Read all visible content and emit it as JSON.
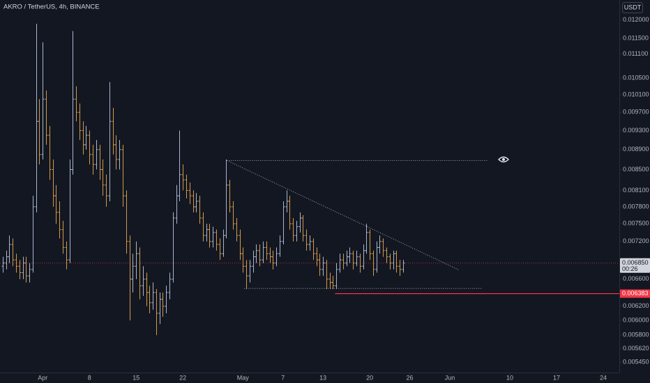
{
  "chart_data": {
    "type": "ohlc",
    "title": "AKRO / TetherUS, 4h, BINANCE",
    "currency": "USDT",
    "log_scale": true,
    "grid": false,
    "up_color": "#a9b6cc",
    "down_color": "#d29a47",
    "xlim": [
      -6.4,
      86.4
    ],
    "ylim": [
      0.01257,
      0.00532
    ],
    "xticks": [
      {
        "value": 0,
        "label": "Apr"
      },
      {
        "value": 7,
        "label": "8"
      },
      {
        "value": 14,
        "label": "15"
      },
      {
        "value": 21,
        "label": "22"
      },
      {
        "value": 30,
        "label": "May"
      },
      {
        "value": 36,
        "label": "7"
      },
      {
        "value": 42,
        "label": "13"
      },
      {
        "value": 49,
        "label": "20"
      },
      {
        "value": 55,
        "label": "26"
      },
      {
        "value": 61,
        "label": "Jun"
      },
      {
        "value": 70,
        "label": "10"
      },
      {
        "value": 77,
        "label": "17"
      },
      {
        "value": 84,
        "label": "24"
      }
    ],
    "yticks": [
      {
        "value": 0.012,
        "label": "0.012000"
      },
      {
        "value": 0.0115,
        "label": "0.011500"
      },
      {
        "value": 0.0111,
        "label": "0.011100"
      },
      {
        "value": 0.0105,
        "label": "0.010500"
      },
      {
        "value": 0.0101,
        "label": "0.010100"
      },
      {
        "value": 0.0097,
        "label": "0.009700"
      },
      {
        "value": 0.0093,
        "label": "0.009300"
      },
      {
        "value": 0.0089,
        "label": "0.008900"
      },
      {
        "value": 0.0085,
        "label": "0.008500"
      },
      {
        "value": 0.0081,
        "label": "0.008100"
      },
      {
        "value": 0.0078,
        "label": "0.007800"
      },
      {
        "value": 0.0075,
        "label": "0.007500"
      },
      {
        "value": 0.0072,
        "label": "0.007200"
      },
      {
        "value": 0.0066,
        "label": "0.006600"
      },
      {
        "value": 0.0062,
        "label": "0.006200"
      },
      {
        "value": 0.006,
        "label": "0.006000"
      },
      {
        "value": 0.0058,
        "label": "0.005800"
      },
      {
        "value": 0.00562,
        "label": "0.005620"
      },
      {
        "value": 0.00545,
        "label": "0.005450"
      }
    ],
    "x": [
      -6,
      -5.5,
      -5,
      -4.5,
      -4,
      -3.5,
      -3,
      -2.5,
      -2,
      -1.5,
      -1,
      -0.5,
      0,
      0.5,
      1,
      1.5,
      2,
      2.5,
      3,
      3.5,
      4,
      4.5,
      5,
      5.5,
      6,
      6.5,
      7,
      7.5,
      8,
      8.5,
      9,
      9.5,
      10,
      10.5,
      11,
      11.5,
      12,
      12.5,
      13,
      13.5,
      14,
      14.5,
      15,
      15.5,
      16,
      16.5,
      17,
      17.5,
      18,
      18.5,
      19,
      19.5,
      20,
      20.5,
      21,
      21.5,
      22,
      22.5,
      23,
      23.5,
      24,
      24.5,
      25,
      25.5,
      26,
      26.5,
      27,
      27.5,
      28,
      28.5,
      29,
      29.5,
      30,
      30.5,
      31,
      31.5,
      32,
      32.5,
      33,
      33.5,
      34,
      34.5,
      35,
      35.5,
      36,
      36.5,
      37,
      37.5,
      38,
      38.5,
      39,
      39.5,
      40,
      40.5,
      41,
      41.5,
      42,
      42.5,
      43,
      43.5,
      44,
      44.5,
      45,
      45.5,
      46,
      46.5,
      47,
      47.5,
      48,
      48.5,
      49,
      49.5,
      50,
      50.5,
      51,
      51.5,
      52,
      52.5,
      53,
      53.5,
      54
    ],
    "open": [
      0.0068,
      0.00685,
      0.00695,
      0.00715,
      0.0069,
      0.0068,
      0.0067,
      0.00685,
      0.00665,
      0.00675,
      0.0078,
      0.0095,
      0.0088,
      0.01,
      0.0092,
      0.0085,
      0.008,
      0.0077,
      0.0074,
      0.0071,
      0.0069,
      0.0085,
      0.01,
      0.0097,
      0.0093,
      0.009,
      0.0092,
      0.0088,
      0.0086,
      0.0089,
      0.0085,
      0.0082,
      0.008,
      0.0095,
      0.009,
      0.0087,
      0.0089,
      0.008,
      0.0072,
      0.0066,
      0.0068,
      0.007,
      0.0065,
      0.0066,
      0.0064,
      0.00625,
      0.0064,
      0.0061,
      0.0063,
      0.0062,
      0.0064,
      0.0066,
      0.0076,
      0.008,
      0.0084,
      0.0083,
      0.0081,
      0.008,
      0.0078,
      0.0079,
      0.0076,
      0.0073,
      0.0074,
      0.0072,
      0.00735,
      0.00715,
      0.007,
      0.0073,
      0.0082,
      0.0078,
      0.0075,
      0.0073,
      0.007,
      0.0068,
      0.00665,
      0.0068,
      0.00695,
      0.00705,
      0.0069,
      0.0071,
      0.007,
      0.00695,
      0.00685,
      0.007,
      0.0072,
      0.0078,
      0.0079,
      0.0075,
      0.0073,
      0.00745,
      0.0076,
      0.0073,
      0.00715,
      0.0072,
      0.007,
      0.0069,
      0.00675,
      0.00685,
      0.0066,
      0.00655,
      0.0065,
      0.00675,
      0.0069,
      0.00685,
      0.00695,
      0.007,
      0.00685,
      0.00695,
      0.0068,
      0.00705,
      0.00735,
      0.007,
      0.00675,
      0.0071,
      0.0072,
      0.00705,
      0.00695,
      0.00685,
      0.007,
      0.0068,
      0.00675
    ],
    "high": [
      0.00695,
      0.00705,
      0.0073,
      0.00725,
      0.007,
      0.0069,
      0.00695,
      0.00695,
      0.00685,
      0.008,
      0.0119,
      0.01,
      0.0114,
      0.0102,
      0.0094,
      0.0087,
      0.0082,
      0.0079,
      0.00755,
      0.0072,
      0.0087,
      0.0117,
      0.0103,
      0.0099,
      0.0095,
      0.0094,
      0.0093,
      0.009,
      0.0091,
      0.009,
      0.0087,
      0.0084,
      0.0104,
      0.0098,
      0.0092,
      0.0091,
      0.009,
      0.0081,
      0.0073,
      0.007,
      0.0072,
      0.0071,
      0.0068,
      0.0067,
      0.0065,
      0.00655,
      0.00645,
      0.0064,
      0.0064,
      0.0065,
      0.0067,
      0.0077,
      0.0082,
      0.0093,
      0.0086,
      0.0084,
      0.00825,
      0.0081,
      0.00805,
      0.008,
      0.0077,
      0.0075,
      0.0075,
      0.00745,
      0.0074,
      0.00725,
      0.0074,
      0.0087,
      0.0083,
      0.0079,
      0.0076,
      0.0074,
      0.0071,
      0.0069,
      0.0069,
      0.00705,
      0.00715,
      0.00715,
      0.0072,
      0.0072,
      0.0071,
      0.00705,
      0.0071,
      0.0073,
      0.0079,
      0.0081,
      0.008,
      0.0076,
      0.00755,
      0.0077,
      0.00765,
      0.0074,
      0.0073,
      0.00725,
      0.0071,
      0.007,
      0.00695,
      0.0069,
      0.0067,
      0.00665,
      0.00685,
      0.007,
      0.007,
      0.00705,
      0.0071,
      0.00705,
      0.00705,
      0.007,
      0.00715,
      0.0075,
      0.0074,
      0.00705,
      0.0072,
      0.0073,
      0.00725,
      0.0071,
      0.007,
      0.00705,
      0.00705,
      0.0069,
      0.0069
    ],
    "low": [
      0.0067,
      0.00675,
      0.00685,
      0.0068,
      0.0067,
      0.0066,
      0.0066,
      0.00655,
      0.00655,
      0.0067,
      0.0077,
      0.0086,
      0.0087,
      0.009,
      0.0083,
      0.0078,
      0.0075,
      0.00725,
      0.007,
      0.00675,
      0.00685,
      0.0084,
      0.0095,
      0.0091,
      0.0088,
      0.0089,
      0.0086,
      0.0084,
      0.0085,
      0.0083,
      0.008,
      0.0078,
      0.0079,
      0.0088,
      0.0085,
      0.0085,
      0.0078,
      0.007,
      0.006,
      0.0064,
      0.0066,
      0.0063,
      0.00635,
      0.0062,
      0.0061,
      0.00615,
      0.0058,
      0.00595,
      0.00605,
      0.0061,
      0.0063,
      0.00655,
      0.0075,
      0.0079,
      0.0081,
      0.00795,
      0.00785,
      0.0077,
      0.0077,
      0.0075,
      0.0072,
      0.0072,
      0.0071,
      0.0071,
      0.00705,
      0.0069,
      0.00695,
      0.00725,
      0.0077,
      0.0074,
      0.0072,
      0.0069,
      0.0067,
      0.00645,
      0.00655,
      0.0067,
      0.00685,
      0.0068,
      0.00685,
      0.0069,
      0.00685,
      0.00675,
      0.0068,
      0.00695,
      0.00715,
      0.0077,
      0.0074,
      0.0072,
      0.0072,
      0.00735,
      0.0072,
      0.00705,
      0.00705,
      0.0069,
      0.0068,
      0.00665,
      0.00665,
      0.00645,
      0.00645,
      0.00645,
      0.00645,
      0.0067,
      0.00675,
      0.0068,
      0.00685,
      0.00675,
      0.0068,
      0.0067,
      0.00675,
      0.007,
      0.0069,
      0.00665,
      0.0067,
      0.007,
      0.00695,
      0.00685,
      0.00675,
      0.00675,
      0.0067,
      0.00665,
      0.0067
    ],
    "close": [
      0.00685,
      0.00695,
      0.00715,
      0.0069,
      0.0068,
      0.0067,
      0.00685,
      0.00665,
      0.00675,
      0.0078,
      0.0095,
      0.0088,
      0.01,
      0.0092,
      0.0085,
      0.008,
      0.0077,
      0.0074,
      0.0071,
      0.0069,
      0.0085,
      0.01,
      0.0097,
      0.0093,
      0.009,
      0.0092,
      0.0088,
      0.0086,
      0.0089,
      0.0085,
      0.0082,
      0.008,
      0.0095,
      0.009,
      0.0087,
      0.0089,
      0.008,
      0.0072,
      0.0066,
      0.0068,
      0.007,
      0.0065,
      0.0066,
      0.0064,
      0.00625,
      0.0064,
      0.0061,
      0.0063,
      0.0062,
      0.0064,
      0.0066,
      0.0076,
      0.008,
      0.0084,
      0.0083,
      0.0081,
      0.008,
      0.0078,
      0.0079,
      0.0076,
      0.0073,
      0.0074,
      0.0072,
      0.00735,
      0.00715,
      0.007,
      0.0073,
      0.0082,
      0.0078,
      0.0075,
      0.0073,
      0.007,
      0.0068,
      0.00665,
      0.0068,
      0.00695,
      0.00705,
      0.0069,
      0.0071,
      0.007,
      0.00695,
      0.00685,
      0.007,
      0.0072,
      0.0078,
      0.0079,
      0.0075,
      0.0073,
      0.00745,
      0.0076,
      0.0073,
      0.00715,
      0.0072,
      0.007,
      0.0069,
      0.00675,
      0.00685,
      0.0066,
      0.00655,
      0.0065,
      0.00675,
      0.0069,
      0.00685,
      0.00695,
      0.007,
      0.00685,
      0.00695,
      0.0068,
      0.00705,
      0.00735,
      0.007,
      0.00675,
      0.0071,
      0.0072,
      0.00705,
      0.00695,
      0.00685,
      0.007,
      0.0068,
      0.00675,
      0.00685
    ],
    "trendlines": [
      {
        "x": [
          27.6,
          66.8
        ],
        "y": [
          0.00868,
          0.00868
        ]
      },
      {
        "x": [
          27.6,
          62.4
        ],
        "y": [
          0.00868,
          0.00674
        ]
      },
      {
        "x": [
          30.2,
          65.9
        ],
        "y": [
          0.00646,
          0.00646
        ]
      }
    ],
    "low_line": {
      "x": 43.8,
      "value": 0.006383,
      "color": "#f23645"
    },
    "last_price": {
      "value": 0.00685,
      "label": "0.006850",
      "countdown": "00:26",
      "color": "#f23645"
    }
  }
}
